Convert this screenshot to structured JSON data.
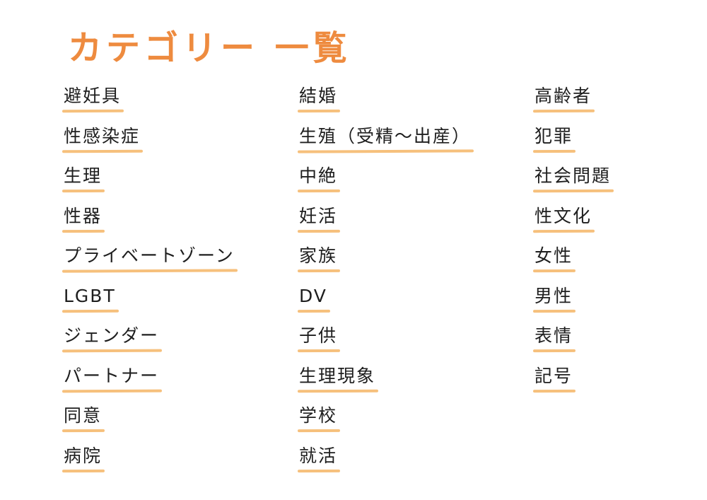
{
  "title": "カテゴリー 一覧",
  "colors": {
    "title": "#ee8b3f",
    "underline": "#f6c07c",
    "text": "#1e1e1e"
  },
  "columns": [
    {
      "items": [
        "避妊具",
        "性感染症",
        "生理",
        "性器",
        "プライベートゾーン",
        "LGBT",
        "ジェンダー",
        "パートナー",
        "同意",
        "病院"
      ]
    },
    {
      "items": [
        "結婚",
        "生殖（受精〜出産）",
        "中絶",
        "妊活",
        "家族",
        "DV",
        "子供",
        "生理現象",
        "学校",
        "就活"
      ]
    },
    {
      "items": [
        "高齢者",
        "犯罪",
        "社会問題",
        "性文化",
        "女性",
        "男性",
        "表情",
        "記号"
      ]
    }
  ]
}
